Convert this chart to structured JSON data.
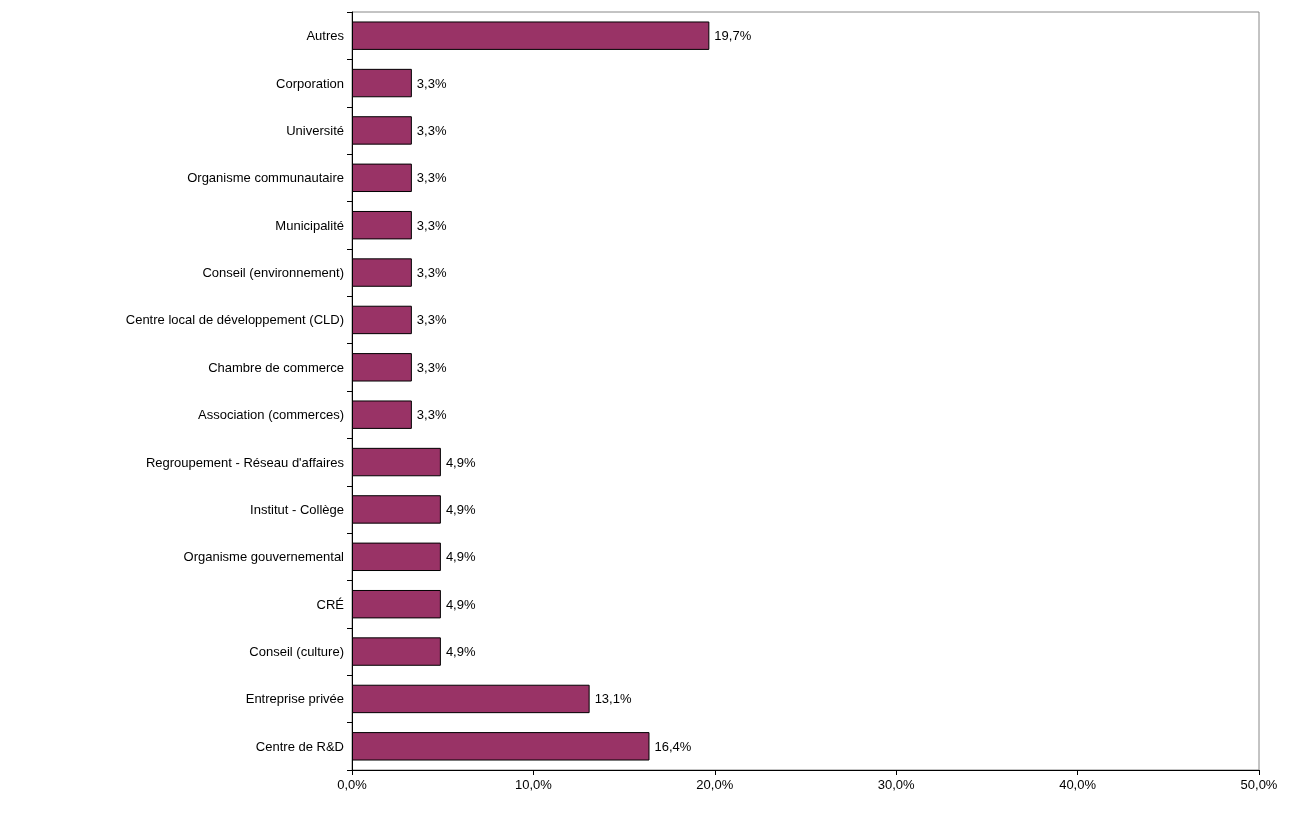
{
  "chart_data": {
    "type": "bar",
    "orientation": "horizontal",
    "categories": [
      "Autres",
      "Corporation",
      "Université",
      "Organisme communautaire",
      "Municipalité",
      "Conseil (environnement)",
      "Centre local de développement (CLD)",
      "Chambre de commerce",
      "Association (commerces)",
      "Regroupement - Réseau d'affaires",
      "Institut - Collège",
      "Organisme gouvernemental",
      "CRÉ",
      "Conseil (culture)",
      "Entreprise privée",
      "Centre de R&D"
    ],
    "values": [
      19.7,
      3.3,
      3.3,
      3.3,
      3.3,
      3.3,
      3.3,
      3.3,
      3.3,
      4.9,
      4.9,
      4.9,
      4.9,
      4.9,
      13.1,
      16.4
    ],
    "value_labels": [
      "19,7%",
      "3,3%",
      "3,3%",
      "3,3%",
      "3,3%",
      "3,3%",
      "3,3%",
      "3,3%",
      "3,3%",
      "4,9%",
      "4,9%",
      "4,9%",
      "4,9%",
      "4,9%",
      "13,1%",
      "16,4%"
    ],
    "color": "#993366",
    "xlim": [
      0,
      50
    ],
    "xticks": [
      {
        "value": 0,
        "label": "0,0%"
      },
      {
        "value": 10,
        "label": "10,0%"
      },
      {
        "value": 20,
        "label": "20,0%"
      },
      {
        "value": 30,
        "label": "30,0%"
      },
      {
        "value": 40,
        "label": "40,0%"
      },
      {
        "value": 50,
        "label": "50,0%"
      }
    ],
    "grid": false
  }
}
